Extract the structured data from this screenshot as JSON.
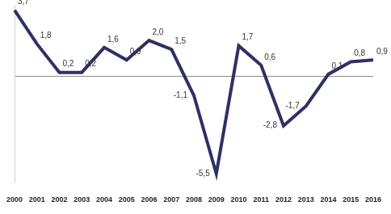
{
  "chart_data": {
    "type": "line",
    "categories": [
      "2000",
      "2001",
      "2002",
      "2003",
      "2004",
      "2005",
      "2006",
      "2007",
      "2008",
      "2009",
      "2010",
      "2011",
      "2012",
      "2013",
      "2014",
      "2015",
      "2016"
    ],
    "values": [
      3.7,
      1.8,
      0.2,
      0.2,
      1.6,
      0.9,
      2.0,
      1.5,
      -1.1,
      -5.5,
      1.7,
      0.6,
      -2.8,
      -1.7,
      0.1,
      0.8,
      0.9
    ],
    "value_labels": [
      "3,7",
      "1,8",
      "0,2",
      "0,2",
      "1,6",
      "0,9",
      "2,0",
      "1,5",
      "-1,1",
      "-5,5",
      "1,7",
      "0,6",
      "-2,8",
      "-1,7",
      "0,1",
      "0,8",
      "0,9"
    ],
    "color": "#2e3163",
    "ylim": [
      -6,
      4
    ],
    "yticks": [
      0
    ],
    "grid": true,
    "data_labels": true,
    "tick_labels": "x"
  }
}
